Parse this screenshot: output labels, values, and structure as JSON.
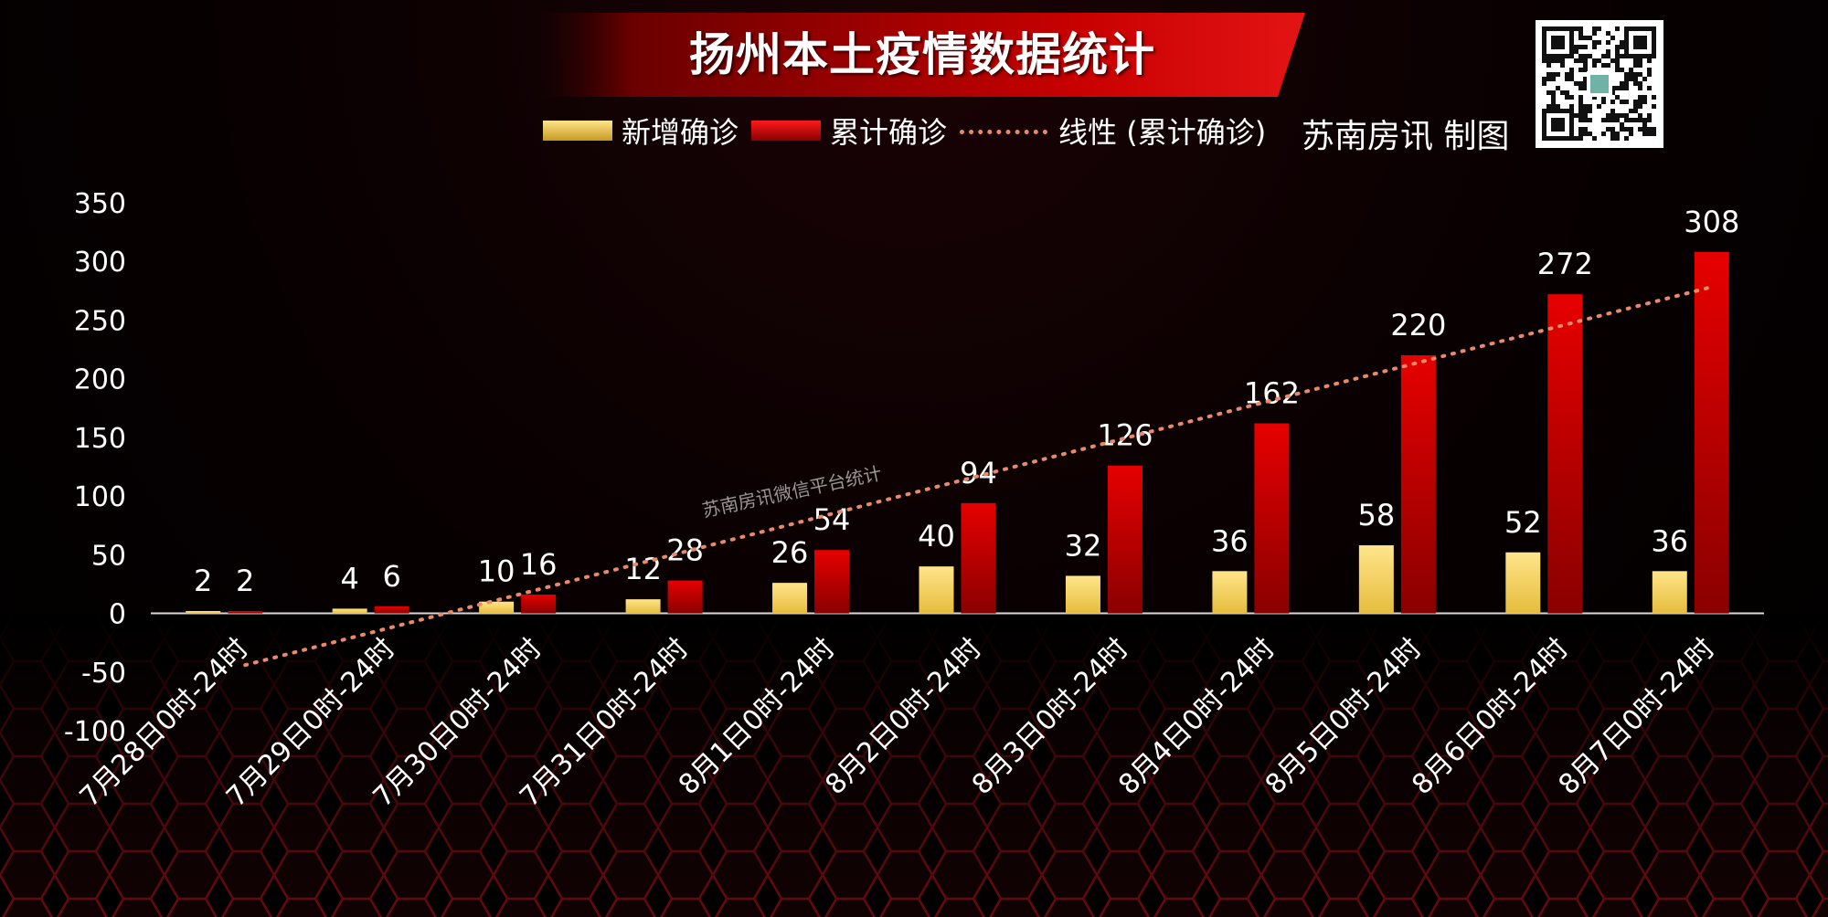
{
  "title": "扬州本土疫情数据统计",
  "credit": "苏南房讯 制图",
  "watermark": "苏南房讯微信平台统计",
  "colors": {
    "new": "#e6bc3c",
    "total": "#e60000",
    "linear": "#e88a6a",
    "background": "#000000"
  },
  "legend": {
    "new_label": "新增确诊",
    "total_label": "累计确诊",
    "linear_label": "线性 (累计确诊)"
  },
  "chart_data": {
    "type": "bar",
    "categories": [
      "7月28日0时-24时",
      "7月29日0时-24时",
      "7月30日0时-24时",
      "7月31日0时-24时",
      "8月1日0时-24时",
      "8月2日0时-24时",
      "8月3日0时-24时",
      "8月4日0时-24时",
      "8月5日0时-24时",
      "8月6日0时-24时",
      "8月7日0时-24时"
    ],
    "series": [
      {
        "name": "新增确诊",
        "values": [
          2,
          4,
          10,
          12,
          26,
          40,
          32,
          36,
          58,
          52,
          36
        ]
      },
      {
        "name": "累计确诊",
        "values": [
          2,
          6,
          16,
          28,
          54,
          94,
          126,
          162,
          220,
          272,
          308
        ]
      }
    ],
    "trendline": {
      "name": "线性 (累计确诊)",
      "of_series": "累计确诊",
      "type": "linear"
    },
    "ylim": [
      -100,
      350
    ],
    "yticks": [
      -100,
      -50,
      0,
      50,
      100,
      150,
      200,
      250,
      300,
      350
    ],
    "grid": false,
    "legend_position": "top"
  }
}
